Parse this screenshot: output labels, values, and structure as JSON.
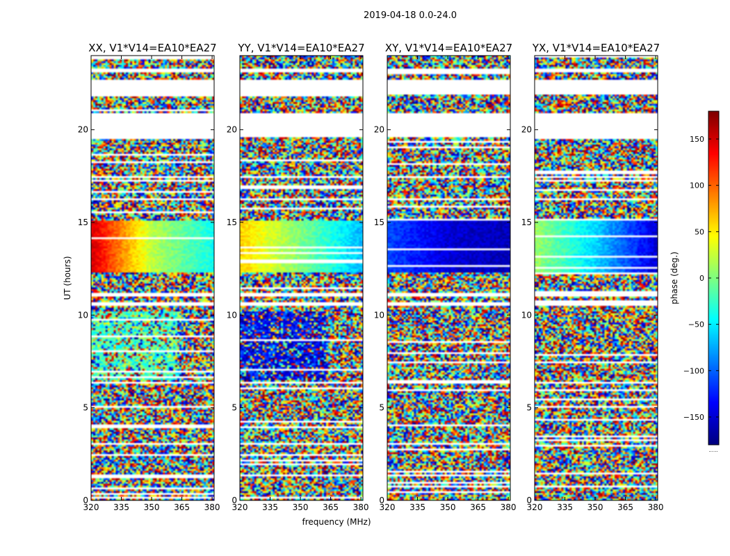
{
  "chart_data": {
    "type": "heatmap",
    "suptitle": "2019-04-18 0.0-24.0",
    "xlabel": "frequency (MHz)",
    "ylabel": "UT (hours)",
    "xlim": [
      320,
      381
    ],
    "ylim": [
      0,
      24
    ],
    "xticks": [
      320,
      335,
      350,
      365,
      380
    ],
    "yticks": [
      0,
      5,
      10,
      15,
      20
    ],
    "panels": [
      {
        "title": "XX, V1*V14=EA10*EA27",
        "coherent_phase": [
          150,
          20,
          -40
        ],
        "coherent_hours": [
          12.3,
          15.1
        ],
        "secondary_band_phase": -20,
        "secondary_band_hours": [
          6.5,
          10.2
        ]
      },
      {
        "title": "YY, V1*V14=EA10*EA27",
        "coherent_phase": [
          60,
          0,
          -70
        ],
        "coherent_hours": [
          12.3,
          15.1
        ],
        "secondary_band_phase": -140,
        "secondary_band_hours": [
          6.5,
          10.2
        ]
      },
      {
        "title": "XY, V1*V14=EA10*EA27",
        "coherent_phase": [
          -110,
          -150,
          -160
        ],
        "coherent_hours": [
          12.3,
          15.1
        ],
        "secondary_band_phase": null,
        "secondary_band_hours": null
      },
      {
        "title": "YX, V1*V14=EA10*EA27",
        "coherent_phase": [
          10,
          -60,
          -150
        ],
        "coherent_hours": [
          12.3,
          15.1
        ],
        "secondary_band_phase": null,
        "secondary_band_hours": null
      }
    ],
    "flagged_hours": [
      [
        19.6,
        20.9
      ],
      [
        21.9,
        22.7
      ],
      [
        23.1,
        23.3
      ],
      [
        11.0,
        11.15
      ],
      [
        10.55,
        10.65
      ],
      [
        6.3,
        6.4
      ],
      [
        17.4,
        17.5
      ],
      [
        16.2,
        16.3
      ]
    ],
    "colorbar": {
      "label": "phase (deg.)",
      "range": [
        -180,
        180
      ],
      "ticks": [
        150,
        100,
        50,
        0,
        -50,
        -100,
        -150
      ],
      "tick_labels": [
        "150",
        "100",
        "50",
        "0",
        "−50",
        "−100",
        "−150"
      ],
      "footer": "......"
    }
  }
}
